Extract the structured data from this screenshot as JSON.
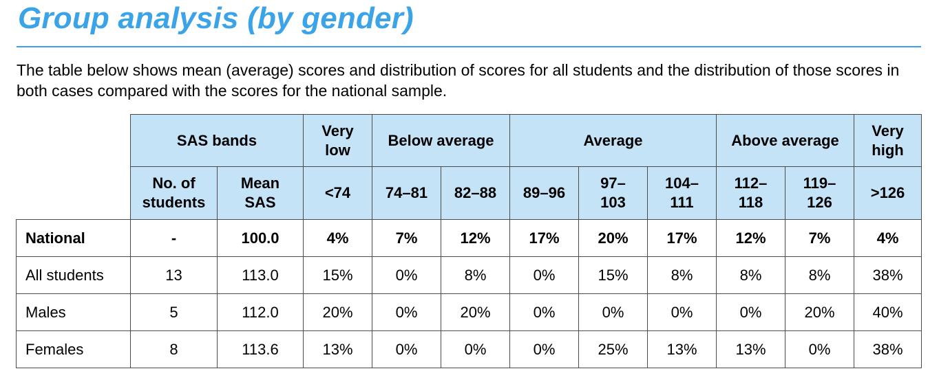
{
  "title": "Group analysis (by gender)",
  "intro": "The table below shows mean (average) scores and distribution of scores for all students and the distribution of those scores in both cases compared with the scores for the national sample.",
  "header_row1": {
    "sas_bands": "SAS bands",
    "very_low_1": "Very",
    "very_low_2": "low",
    "below_average": "Below average",
    "average": "Average",
    "above_average": "Above average",
    "very_high_1": "Very",
    "very_high_2": "high"
  },
  "header_row2": [
    [
      "No. of",
      "students"
    ],
    [
      "Mean",
      "SAS"
    ],
    [
      "<74",
      ""
    ],
    [
      "74–81",
      ""
    ],
    [
      "82–88",
      ""
    ],
    [
      "89–96",
      ""
    ],
    [
      "97–",
      "103"
    ],
    [
      "104–",
      "111"
    ],
    [
      "112–",
      "118"
    ],
    [
      "119–",
      "126"
    ],
    [
      ">126",
      ""
    ]
  ],
  "rows": [
    {
      "label": "National",
      "cells": [
        "-",
        "100.0",
        "4%",
        "7%",
        "12%",
        "17%",
        "20%",
        "17%",
        "12%",
        "7%",
        "4%"
      ]
    },
    {
      "label": "All students",
      "cells": [
        "13",
        "113.0",
        "15%",
        "0%",
        "8%",
        "0%",
        "15%",
        "8%",
        "8%",
        "8%",
        "38%"
      ]
    },
    {
      "label": "Males",
      "cells": [
        "5",
        "112.0",
        "20%",
        "0%",
        "20%",
        "0%",
        "0%",
        "0%",
        "0%",
        "20%",
        "40%"
      ]
    },
    {
      "label": "Females",
      "cells": [
        "8",
        "113.6",
        "13%",
        "0%",
        "0%",
        "0%",
        "25%",
        "13%",
        "13%",
        "0%",
        "38%"
      ]
    }
  ],
  "colors": {
    "title": "#3ba3e8",
    "header_fill": "#c4e3f7",
    "rule": "#3ba3e8"
  }
}
